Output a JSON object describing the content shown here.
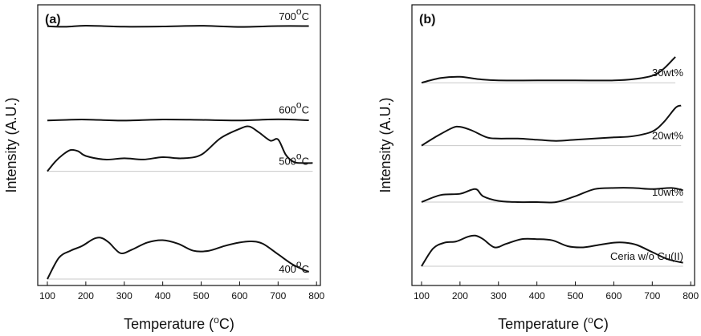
{
  "chart_data": [
    {
      "type": "line",
      "panel_label": "(a)",
      "xlabel": "Temperature (oC)",
      "ylabel": "Intensity (A.U.)",
      "xlim": [
        75,
        810
      ],
      "xticks": [
        "100",
        "200",
        "300",
        "400",
        "500",
        "600",
        "700",
        "800"
      ],
      "yticks": false,
      "grid": false,
      "legend": "none",
      "series": [
        {
          "name": "700oC",
          "x": [
            100,
            150,
            200,
            300,
            400,
            500,
            600,
            700,
            780
          ],
          "y": [
            1,
            1,
            1,
            1,
            1,
            1,
            1,
            1,
            1
          ],
          "baseline_offset": 0.985
        },
        {
          "name": "600oC",
          "x": [
            100,
            150,
            200,
            300,
            400,
            500,
            600,
            700,
            780
          ],
          "y": [
            1,
            1,
            1,
            1,
            1,
            1,
            1,
            1,
            1
          ],
          "baseline_offset": 0.62
        },
        {
          "name": "500oC",
          "x": [
            100,
            120,
            140,
            160,
            180,
            200,
            250,
            300,
            350,
            400,
            450,
            500,
            550,
            600,
            625,
            650,
            680,
            700,
            720,
            740,
            760,
            790
          ],
          "y": [
            0,
            0.08,
            0.14,
            0.18,
            0.17,
            0.13,
            0.1,
            0.11,
            0.1,
            0.12,
            0.11,
            0.14,
            0.28,
            0.36,
            0.38,
            0.33,
            0.26,
            0.27,
            0.14,
            0.08,
            0.07,
            0.07
          ],
          "baseline_offset": 0.42
        },
        {
          "name": "400oC",
          "x": [
            100,
            130,
            160,
            190,
            220,
            240,
            260,
            290,
            320,
            360,
            400,
            440,
            480,
            520,
            560,
            600,
            630,
            660,
            700,
            740,
            780
          ],
          "y": [
            0,
            0.18,
            0.24,
            0.28,
            0.34,
            0.35,
            0.31,
            0.22,
            0.25,
            0.31,
            0.33,
            0.3,
            0.24,
            0.24,
            0.28,
            0.31,
            0.32,
            0.3,
            0.21,
            0.12,
            0.06
          ],
          "baseline_offset": 0.0
        }
      ]
    },
    {
      "type": "line",
      "panel_label": "(b)",
      "xlabel": "Temperature (oC)",
      "ylabel": "Intensity (A.U.)",
      "xlim": [
        75,
        810
      ],
      "xticks": [
        "100",
        "200",
        "300",
        "400",
        "500",
        "600",
        "700",
        "800"
      ],
      "yticks": false,
      "grid": false,
      "legend": "none",
      "series": [
        {
          "name": "30wt%",
          "x": [
            100,
            150,
            200,
            250,
            300,
            400,
            500,
            600,
            650,
            700,
            730,
            760
          ],
          "y": [
            0,
            0.04,
            0.05,
            0.03,
            0.02,
            0.02,
            0.02,
            0.02,
            0.03,
            0.06,
            0.12,
            0.22
          ],
          "baseline_offset": 0.765
        },
        {
          "name": "20wt%",
          "x": [
            100,
            140,
            180,
            200,
            230,
            270,
            300,
            350,
            400,
            450,
            500,
            550,
            600,
            650,
            700,
            730,
            760,
            775
          ],
          "y": [
            0,
            0.08,
            0.15,
            0.16,
            0.13,
            0.07,
            0.06,
            0.06,
            0.05,
            0.04,
            0.05,
            0.06,
            0.07,
            0.08,
            0.12,
            0.2,
            0.32,
            0.34
          ],
          "baseline_offset": 0.52
        },
        {
          "name": "10wt%",
          "x": [
            100,
            150,
            200,
            240,
            260,
            300,
            350,
            400,
            450,
            500,
            550,
            600,
            650,
            700,
            750,
            780
          ],
          "y": [
            0,
            0.06,
            0.07,
            0.11,
            0.05,
            0.01,
            0.0,
            0.0,
            0.0,
            0.05,
            0.11,
            0.12,
            0.12,
            0.11,
            0.12,
            0.1
          ],
          "baseline_offset": 0.3
        },
        {
          "name": "Ceria w/o Cu(II)",
          "x": [
            100,
            130,
            160,
            190,
            220,
            240,
            260,
            290,
            320,
            360,
            400,
            440,
            480,
            520,
            560,
            600,
            630,
            660,
            700,
            740,
            780
          ],
          "y": [
            0,
            0.15,
            0.2,
            0.21,
            0.25,
            0.26,
            0.23,
            0.16,
            0.19,
            0.23,
            0.23,
            0.22,
            0.17,
            0.16,
            0.18,
            0.2,
            0.2,
            0.18,
            0.12,
            0.06,
            0.03
          ],
          "baseline_offset": 0.05
        }
      ]
    }
  ]
}
